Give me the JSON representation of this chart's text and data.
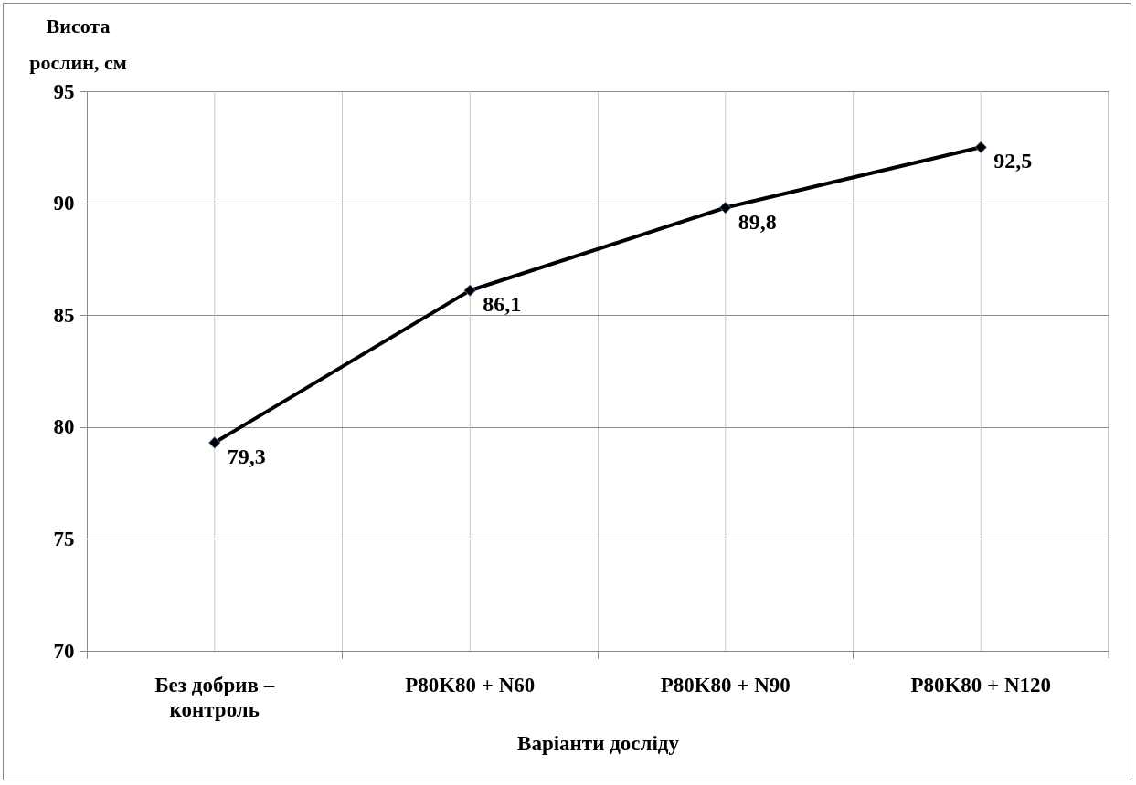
{
  "chart_data": {
    "type": "line",
    "xlabel": "Варіанти досліду",
    "ylabel": "Висота рослин, см",
    "categories": [
      "Без добрив – контроль",
      "P80K80 + N60",
      "P80K80 + N90",
      "P80K80 + N120"
    ],
    "series": [
      {
        "color": "#000000",
        "values": [
          79.3,
          86.1,
          89.8,
          92.5
        ],
        "value_labels": [
          "79,3",
          "86,1",
          "89,8",
          "92,5"
        ]
      }
    ],
    "ylim": [
      70,
      95
    ],
    "yticks": [
      70,
      75,
      80,
      85,
      90,
      95
    ],
    "grid": true,
    "marker": "diamond"
  }
}
